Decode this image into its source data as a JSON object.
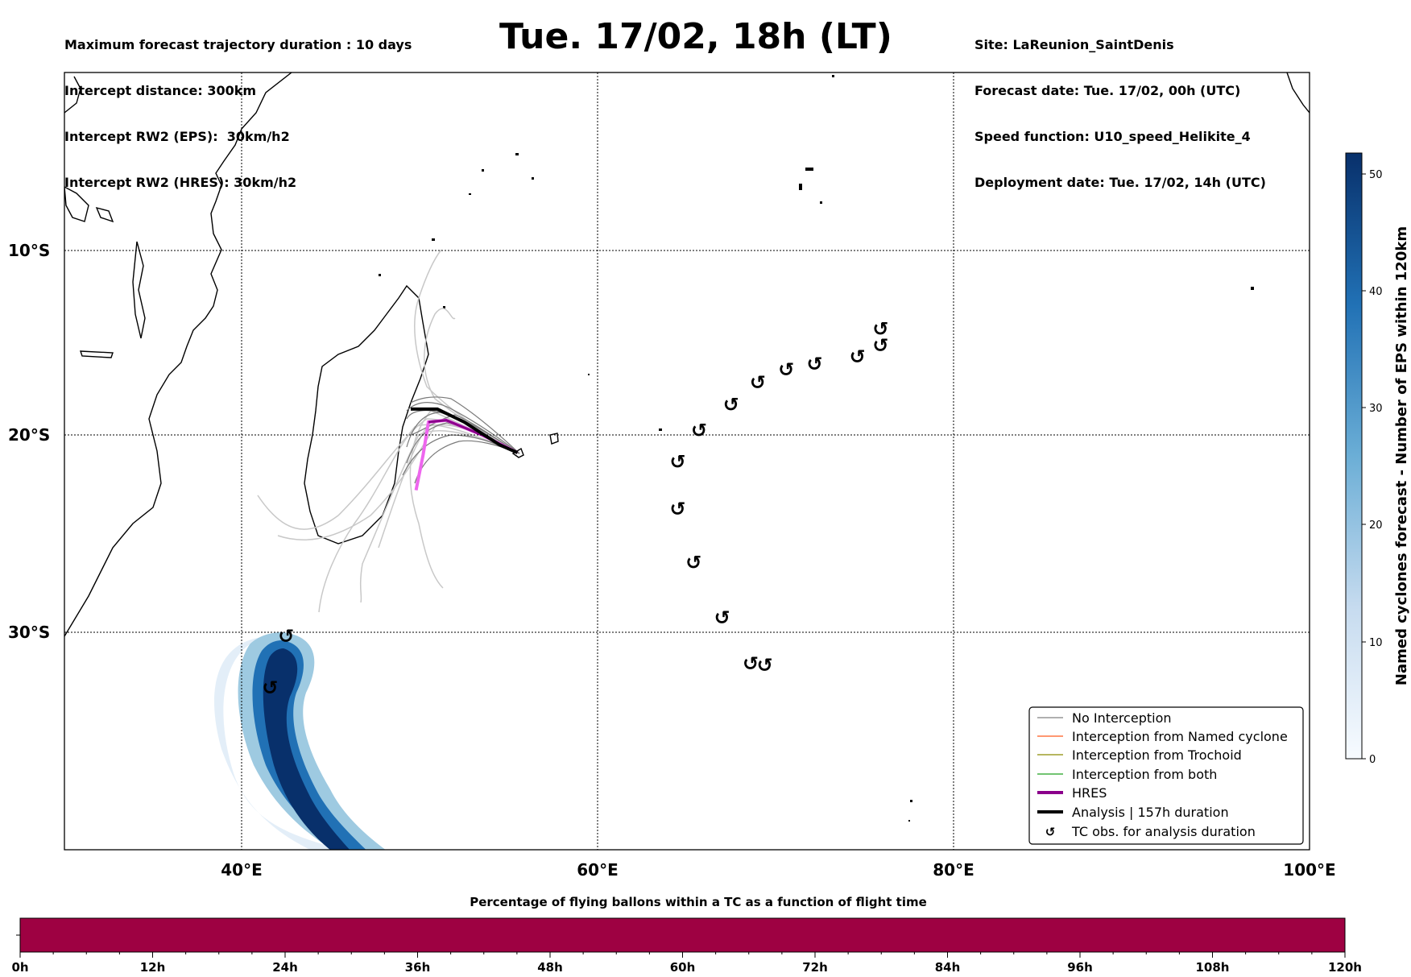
{
  "header": {
    "left": [
      "Maximum forecast trajectory duration : 10 days",
      "Intercept distance: 300km",
      "Intercept RW2 (EPS):  30km/h2",
      "Intercept RW2 (HRES): 30km/h2"
    ],
    "title": "Tue. 17/02, 18h (LT)",
    "right": [
      "Site: LaReunion_SaintDenis",
      "Forecast date: Tue. 17/02, 00h (UTC)",
      "Speed function: U10_speed_Helikite_4",
      "Deployment date: Tue. 17/02, 14h (UTC)"
    ]
  },
  "map": {
    "lon_ticks": [
      "40°E",
      "60°E",
      "80°E",
      "100°E"
    ],
    "lat_ticks": [
      "10°S",
      "20°S",
      "30°S"
    ]
  },
  "legend": {
    "items": [
      {
        "label": "No Interception",
        "color": "#808080"
      },
      {
        "label": "Interception from Named cyclone",
        "color": "#ff5a1f"
      },
      {
        "label": "Interception from Trochoid",
        "color": "#8b8b00"
      },
      {
        "label": "Interception from both",
        "color": "#1fa01f"
      },
      {
        "label": "HRES",
        "color": "#8b008b"
      },
      {
        "label": "Analysis | 157h duration",
        "color": "#000000"
      },
      {
        "label": "TC obs. for analysis duration",
        "color": "#000000"
      }
    ]
  },
  "colorbar": {
    "label": "Named cyclones forecast - Number of EPS within 120km",
    "ticks": [
      "0",
      "10",
      "20",
      "30",
      "40",
      "50"
    ]
  },
  "timebar": {
    "title": "Percentage of flying ballons within a TC as a function of flight time",
    "ticks": [
      "0h",
      "12h",
      "24h",
      "36h",
      "48h",
      "60h",
      "72h",
      "84h",
      "96h",
      "108h",
      "120h"
    ],
    "fill_color": "#9e0142"
  },
  "chart_data": {
    "type": "map",
    "region": {
      "lon_range": [
        30,
        100
      ],
      "lat_range": [
        -43.5,
        0
      ]
    },
    "site": {
      "name": "LaReunion_SaintDenis",
      "lon": 55.5,
      "lat": -20.9
    },
    "hres_track": [
      [
        55.5,
        -20.9
      ],
      [
        53.5,
        -20.0
      ],
      [
        51.5,
        -19.2
      ],
      [
        50.5,
        -19.3
      ],
      [
        50.2,
        -21.0
      ],
      [
        49.8,
        -22.8
      ]
    ],
    "analysis_track": [
      [
        55.5,
        -20.9
      ],
      [
        54.5,
        -20.5
      ],
      [
        52.5,
        -19.3
      ],
      [
        51.0,
        -18.6
      ],
      [
        49.5,
        -18.6
      ]
    ],
    "tc_obs": [
      [
        42.5,
        -30.3
      ],
      [
        41.6,
        -33.5
      ],
      [
        64.5,
        -23.8
      ],
      [
        64.5,
        -21.4
      ],
      [
        65.7,
        -19.8
      ],
      [
        67.5,
        -18.4
      ],
      [
        69.0,
        -17.2
      ],
      [
        70.6,
        -16.5
      ],
      [
        72.2,
        -16.2
      ],
      [
        74.6,
        -15.8
      ],
      [
        75.9,
        -15.2
      ],
      [
        75.9,
        -14.3
      ],
      [
        65.4,
        -26.5
      ],
      [
        67.0,
        -29.3
      ],
      [
        68.6,
        -32.0
      ],
      [
        69.4,
        -32.1
      ]
    ]
  }
}
